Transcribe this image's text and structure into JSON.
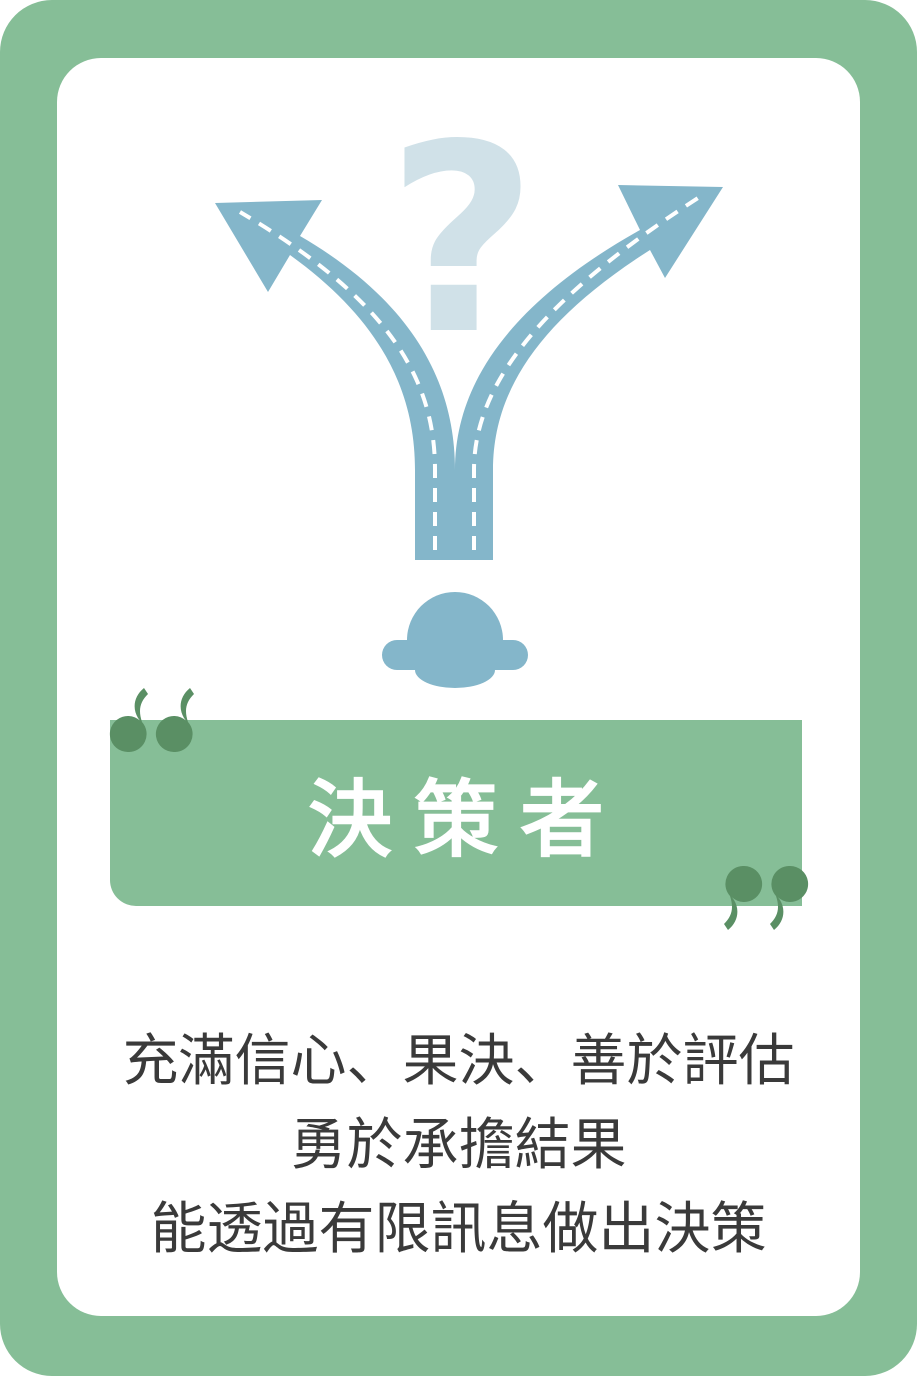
{
  "card": {
    "title": "決策者",
    "description_lines": [
      "充滿信心、果決、善於評估",
      "勇於承擔結果",
      "能透過有限訊息做出決策"
    ]
  },
  "illustration": {
    "question_mark": "?",
    "icons": [
      "forked-road-icon",
      "question-mark-icon",
      "person-head-icon"
    ]
  },
  "colors": {
    "frame": "#86be97",
    "banner": "#86be97",
    "quote_marks": "#5a8f64",
    "road": "#84b6ca",
    "question_mark": "#d0e1e8",
    "text": "#3a3a3a"
  }
}
